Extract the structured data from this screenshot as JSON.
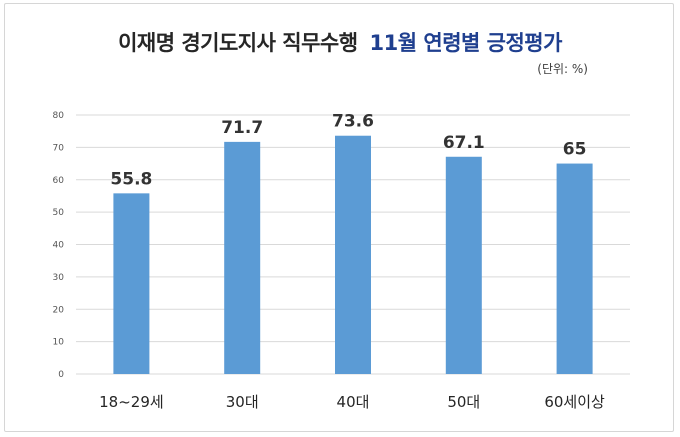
{
  "chart_data": {
    "type": "bar",
    "title_part1": "이재명 경기도지사 직무수행",
    "title_part2": "11월 연령별 긍정평가",
    "unit_note": "(단위: %)",
    "categories": [
      "18~29세",
      "30대",
      "40대",
      "50대",
      "60세이상"
    ],
    "values": [
      55.8,
      71.7,
      73.6,
      67.1,
      65
    ],
    "data_labels": [
      "55.8",
      "71.7",
      "73.6",
      "67.1",
      "65"
    ],
    "ylim": [
      0,
      80
    ],
    "yticks": [
      0,
      10,
      20,
      30,
      40,
      50,
      60,
      70,
      80
    ],
    "grid": true,
    "bar_color": "#5b9bd5",
    "title_color_main": "#262626",
    "title_color_accent": "#1f3f8f"
  }
}
